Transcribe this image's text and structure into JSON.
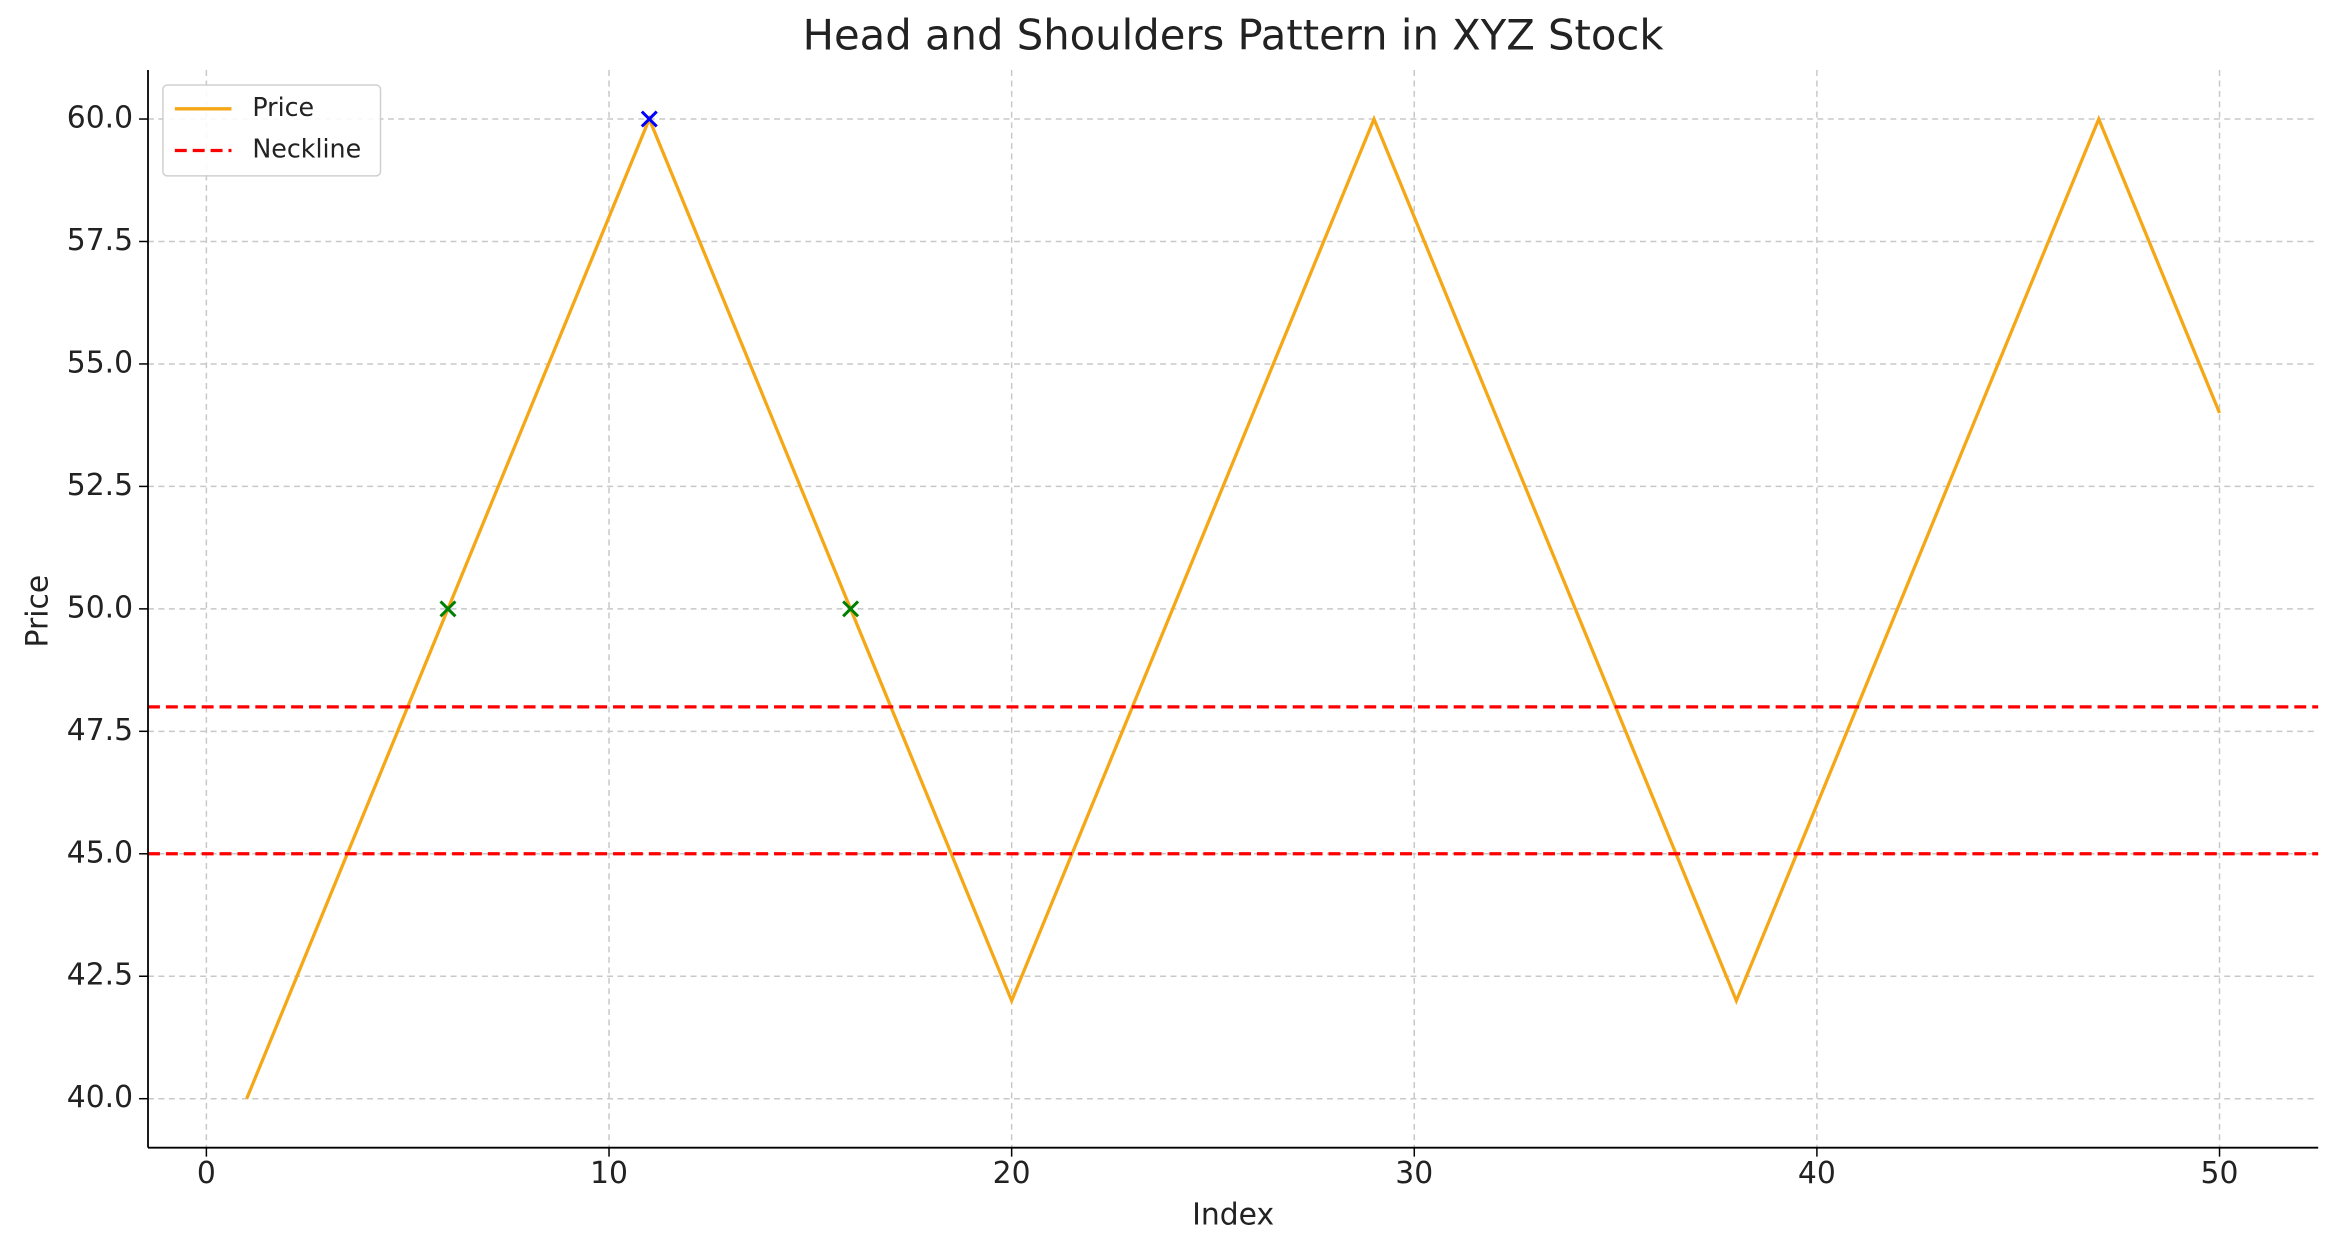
{
  "chart_data": {
    "type": "line",
    "title": "Head and Shoulders Pattern in XYZ Stock",
    "x_label": "Index",
    "y_label": "Price",
    "xlim": [
      -1.45,
      52.45
    ],
    "ylim": [
      39.0,
      61.0
    ],
    "xticks": [
      0,
      10,
      20,
      30,
      40,
      50
    ],
    "yticks": [
      {
        "value": 40,
        "label": "40.0"
      },
      {
        "value": 42.5,
        "label": "42.5"
      },
      {
        "value": 45,
        "label": "45.0"
      },
      {
        "value": 47.5,
        "label": "47.5"
      },
      {
        "value": 50,
        "label": "50.0"
      },
      {
        "value": 52.5,
        "label": "52.5"
      },
      {
        "value": 55,
        "label": "55.0"
      },
      {
        "value": 57.5,
        "label": "57.5"
      },
      {
        "value": 60,
        "label": "60.0"
      }
    ],
    "grid": true,
    "legend": "upper left",
    "series": [
      {
        "name": "Price",
        "color": "#f5a716",
        "x": [
          1,
          2,
          3,
          4,
          5,
          6,
          7,
          8,
          9,
          10,
          11,
          12,
          13,
          14,
          15,
          16,
          17,
          18,
          19,
          20,
          21,
          22,
          23,
          24,
          25,
          26,
          27,
          28,
          29,
          30,
          31,
          32,
          33,
          34,
          35,
          36,
          37,
          38,
          39,
          40,
          41,
          42,
          43,
          44,
          45,
          46,
          47,
          48,
          49,
          50
        ],
        "values": [
          40,
          42,
          44,
          46,
          48,
          50,
          52,
          54,
          56,
          58,
          60,
          58,
          56,
          54,
          52,
          50,
          48,
          46,
          44,
          42,
          44,
          46,
          48,
          50,
          52,
          54,
          56,
          58,
          60,
          58,
          56,
          54,
          52,
          50,
          48,
          46,
          44,
          42,
          44,
          46,
          48,
          50,
          52,
          54,
          56,
          58,
          60,
          58,
          56,
          54
        ]
      },
      {
        "name": "Neckline",
        "color": "#ff0000",
        "levels": [
          48,
          45
        ]
      }
    ],
    "markers": [
      {
        "x": 6,
        "y": 50,
        "color": "#008000"
      },
      {
        "x": 16,
        "y": 50,
        "color": "#008000"
      },
      {
        "x": 11,
        "y": 60,
        "color": "#0000ff"
      }
    ]
  }
}
